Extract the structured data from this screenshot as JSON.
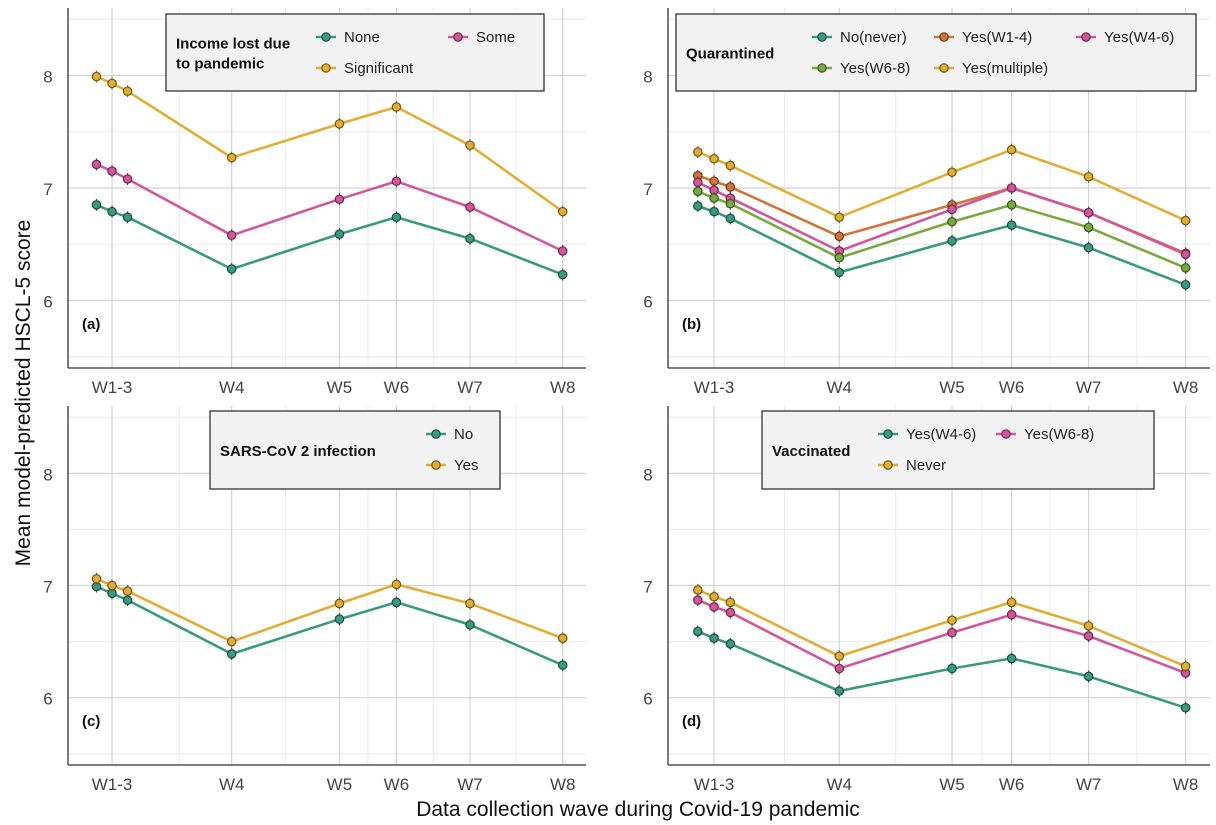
{
  "figure": {
    "ylabel": "Mean model-predicted HSCL-5 score",
    "xlabel": "Data collection wave during Covid-19 pandemic"
  },
  "colors": {
    "green": "#3a9a7e",
    "orange": "#d2743a",
    "magenta": "#d2569a",
    "lightgreen": "#78a93e",
    "gold": "#e0ae34"
  },
  "chart_data": [
    {
      "type": "line",
      "panel_label": "(a)",
      "legend_title": [
        "Income lost due",
        "to pandemic"
      ],
      "legend_cols": 2,
      "x_ticks": [
        "W1-3",
        "W4",
        "W5",
        "W6",
        "W7",
        "W8"
      ],
      "x": [
        1,
        2,
        3,
        4,
        5,
        6,
        7,
        8
      ],
      "yticks": [
        6,
        7,
        8
      ],
      "ylim": [
        5.4,
        8.6
      ],
      "grid": true,
      "series": [
        {
          "name": "None",
          "color": "green",
          "values": [
            6.85,
            6.79,
            6.74,
            6.28,
            6.59,
            6.74,
            6.55,
            6.23
          ]
        },
        {
          "name": "Some",
          "color": "magenta",
          "values": [
            7.21,
            7.15,
            7.08,
            6.58,
            6.9,
            7.06,
            6.83,
            6.44
          ]
        },
        {
          "name": "Significant",
          "color": "gold",
          "values": [
            7.99,
            7.93,
            7.86,
            7.27,
            7.57,
            7.72,
            7.38,
            6.79
          ]
        }
      ]
    },
    {
      "type": "line",
      "panel_label": "(b)",
      "legend_title": [
        "Quarantined"
      ],
      "legend_cols": 3,
      "x_ticks": [
        "W1-3",
        "W4",
        "W5",
        "W6",
        "W7",
        "W8"
      ],
      "x": [
        1,
        2,
        3,
        4,
        5,
        6,
        7,
        8
      ],
      "yticks": [
        6,
        7,
        8
      ],
      "ylim": [
        5.4,
        8.6
      ],
      "grid": true,
      "series": [
        {
          "name": "No(never)",
          "color": "green",
          "values": [
            6.84,
            6.79,
            6.73,
            6.25,
            6.53,
            6.67,
            6.47,
            6.14
          ]
        },
        {
          "name": "Yes(W1-4)",
          "color": "orange",
          "values": [
            7.11,
            7.06,
            7.01,
            6.57,
            6.85,
            7.0,
            6.78,
            6.42
          ]
        },
        {
          "name": "Yes(W4-6)",
          "color": "magenta",
          "values": [
            7.05,
            6.98,
            6.91,
            6.44,
            6.81,
            7.0,
            6.78,
            6.41
          ]
        },
        {
          "name": "Yes(W6-8)",
          "color": "lightgreen",
          "values": [
            6.97,
            6.91,
            6.86,
            6.38,
            6.7,
            6.85,
            6.65,
            6.29
          ]
        },
        {
          "name": "Yes(multiple)",
          "color": "gold",
          "values": [
            7.32,
            7.26,
            7.2,
            6.74,
            7.14,
            7.34,
            7.1,
            6.71
          ]
        }
      ]
    },
    {
      "type": "line",
      "panel_label": "(c)",
      "legend_title": [
        "SARS-CoV 2 infection"
      ],
      "legend_cols": 1,
      "x_ticks": [
        "W1-3",
        "W4",
        "W5",
        "W6",
        "W7",
        "W8"
      ],
      "x": [
        1,
        2,
        3,
        4,
        5,
        6,
        7,
        8
      ],
      "yticks": [
        6,
        7,
        8
      ],
      "ylim": [
        5.4,
        8.6
      ],
      "grid": true,
      "series": [
        {
          "name": "No",
          "color": "green",
          "values": [
            6.99,
            6.93,
            6.87,
            6.39,
            6.7,
            6.85,
            6.65,
            6.29
          ]
        },
        {
          "name": "Yes",
          "color": "gold",
          "values": [
            7.06,
            7.0,
            6.95,
            6.5,
            6.84,
            7.01,
            6.84,
            6.53
          ]
        }
      ]
    },
    {
      "type": "line",
      "panel_label": "(d)",
      "legend_title": [
        "Vaccinated"
      ],
      "legend_cols": 2,
      "x_ticks": [
        "W1-3",
        "W4",
        "W5",
        "W6",
        "W7",
        "W8"
      ],
      "x": [
        1,
        2,
        3,
        4,
        5,
        6,
        7,
        8
      ],
      "yticks": [
        6,
        7,
        8
      ],
      "ylim": [
        5.4,
        8.6
      ],
      "grid": true,
      "series": [
        {
          "name": "Yes(W4-6)",
          "color": "green",
          "values": [
            6.59,
            6.53,
            6.48,
            6.06,
            6.26,
            6.35,
            6.19,
            5.91
          ]
        },
        {
          "name": "Yes(W6-8)",
          "color": "magenta",
          "values": [
            6.87,
            6.81,
            6.76,
            6.26,
            6.58,
            6.74,
            6.55,
            6.22
          ]
        },
        {
          "name": "Never",
          "color": "gold",
          "values": [
            6.96,
            6.9,
            6.85,
            6.37,
            6.69,
            6.85,
            6.64,
            6.28
          ]
        }
      ]
    }
  ]
}
